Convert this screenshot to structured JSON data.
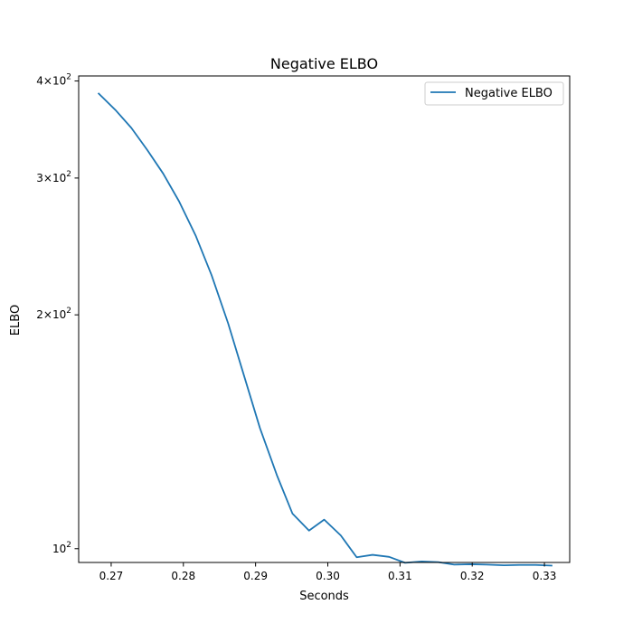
{
  "chart_data": {
    "type": "line",
    "title": "Negative ELBO",
    "xlabel": "Seconds",
    "ylabel": "ELBO",
    "xlim": [
      0.2655,
      0.3335
    ],
    "ylim": [
      96.0,
      406.0
    ],
    "yscale": "log",
    "grid": false,
    "legend": {
      "position": "top-right",
      "entries": [
        "Negative ELBO"
      ]
    },
    "x_ticks": [
      0.27,
      0.28,
      0.29,
      0.3,
      0.31,
      0.32,
      0.33
    ],
    "x_tick_labels": [
      "0.27",
      "0.28",
      "0.29",
      "0.30",
      "0.31",
      "0.32",
      "0.33"
    ],
    "y_ticks": [
      {
        "value": 400,
        "mantissa": "4",
        "base": "10",
        "exp": "2"
      },
      {
        "value": 300,
        "mantissa": "3",
        "base": "10",
        "exp": "2"
      },
      {
        "value": 200,
        "mantissa": "2",
        "base": "10",
        "exp": "2"
      },
      {
        "value": 100,
        "mantissa": "",
        "base": "10",
        "exp": "2"
      }
    ],
    "series": [
      {
        "name": "Negative ELBO",
        "color": "#1f77b4",
        "x": [
          0.2682,
          0.2706,
          0.2728,
          0.275,
          0.2772,
          0.2794,
          0.2817,
          0.2839,
          0.2862,
          0.2884,
          0.2906,
          0.293,
          0.2951,
          0.2974,
          0.2995,
          0.3018,
          0.304,
          0.3062,
          0.3085,
          0.3107,
          0.313,
          0.3153,
          0.3175,
          0.3198,
          0.322,
          0.3244,
          0.3265,
          0.3288,
          0.3311
        ],
        "y": [
          386,
          367,
          348,
          326,
          304,
          280,
          253,
          225,
          195,
          167,
          143,
          124,
          111,
          105.5,
          109,
          104,
          97.5,
          98.2,
          97.6,
          95.9,
          96.3,
          96.1,
          95.4,
          95.5,
          95.4,
          95.2,
          95.3,
          95.3,
          95.1
        ]
      }
    ]
  }
}
